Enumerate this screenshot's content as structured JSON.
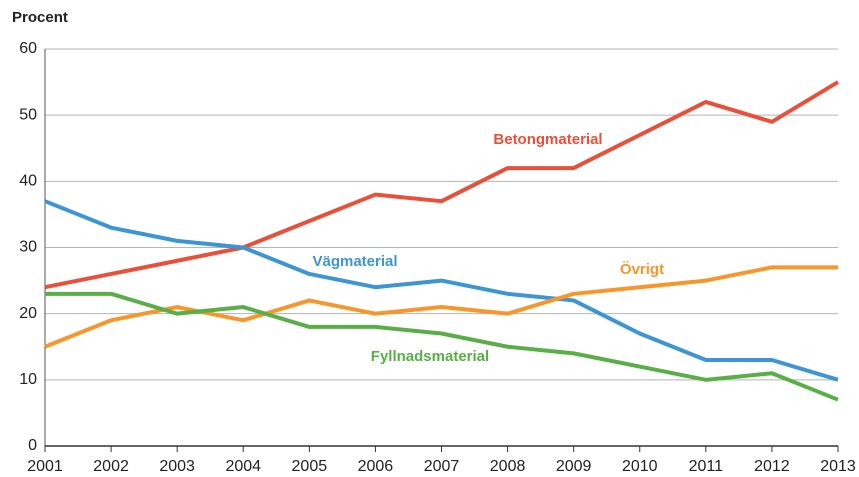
{
  "chart_data": {
    "type": "line",
    "y_label": "Procent",
    "x": [
      2001,
      2002,
      2003,
      2004,
      2005,
      2006,
      2007,
      2008,
      2009,
      2010,
      2011,
      2012,
      2013
    ],
    "xlim": [
      2001,
      2013
    ],
    "xticks": [
      2001,
      2002,
      2003,
      2004,
      2005,
      2006,
      2007,
      2008,
      2009,
      2010,
      2011,
      2012,
      2013
    ],
    "ylim": [
      0,
      60
    ],
    "yticks": [
      0,
      10,
      20,
      30,
      40,
      50,
      60
    ],
    "grid": true,
    "series": [
      {
        "name": "Betongmaterial",
        "color": "#e8503a",
        "values": [
          24,
          26,
          28,
          30,
          34,
          38,
          37,
          42,
          42,
          47,
          52,
          49,
          55
        ]
      },
      {
        "name": "Vägmaterial",
        "color": "#3d95d3",
        "values": [
          37,
          33,
          31,
          30,
          26,
          24,
          25,
          23,
          22,
          17,
          13,
          13,
          10
        ]
      },
      {
        "name": "Övrigt",
        "color": "#f7962b",
        "values": [
          15,
          19,
          21,
          19,
          22,
          20,
          21,
          20,
          23,
          24,
          25,
          27,
          27
        ]
      },
      {
        "name": "Fyllnadsmaterial",
        "color": "#5aae48",
        "values": [
          23,
          23,
          20,
          21,
          18,
          18,
          17,
          15,
          14,
          12,
          10,
          11,
          7
        ]
      }
    ]
  }
}
